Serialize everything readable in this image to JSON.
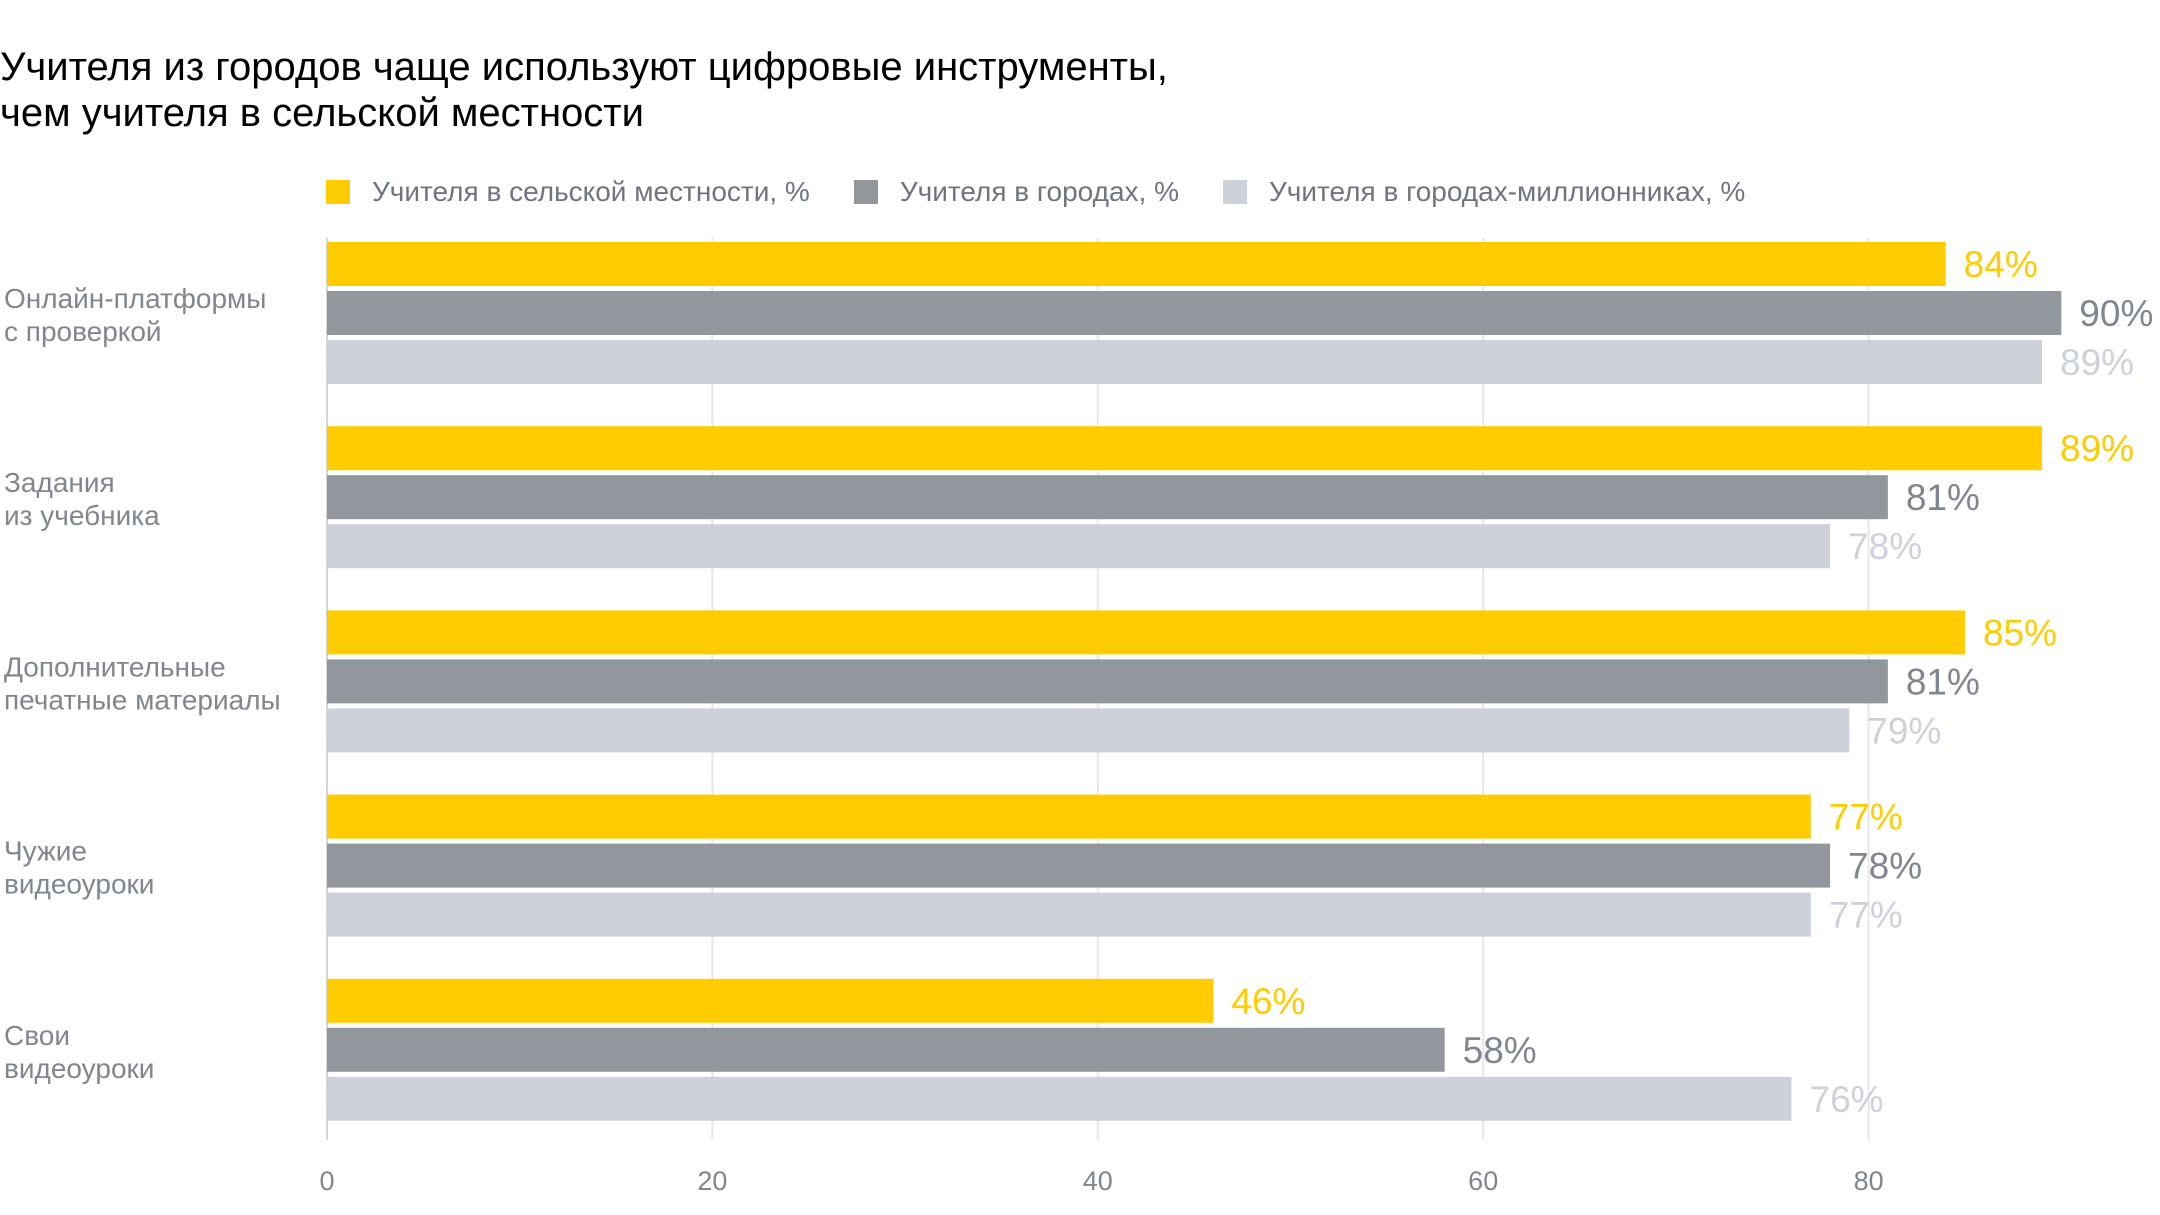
{
  "title_line1": "Учителя из городов чаще используют цифровые инструменты,",
  "title_line2": "чем учителя в сельской местности",
  "chart_data": {
    "type": "bar",
    "orientation": "horizontal",
    "categories": [
      [
        "Онлайн-платформы",
        "с проверкой"
      ],
      [
        "Задания",
        "из учебника"
      ],
      [
        "Дополнительные",
        "печатные материалы"
      ],
      [
        "Чужие",
        "видеоуроки"
      ],
      [
        "Свои",
        "видеоуроки"
      ]
    ],
    "series": [
      {
        "name": "Учителя в сельской местности, %",
        "color": "#ffcc00",
        "label_color": "#ffcc00",
        "values": [
          84,
          89,
          85,
          77,
          46
        ],
        "labels": [
          "84%",
          "89%",
          "85%",
          "77%",
          "46%"
        ]
      },
      {
        "name": "Учителя в городах, %",
        "color": "#92979e",
        "label_color": "#80868f",
        "values": [
          90,
          81,
          81,
          78,
          58
        ],
        "labels": [
          "90%",
          "81%",
          "81%",
          "78%",
          "58%"
        ]
      },
      {
        "name": "Учителя в городах-миллионниках, %",
        "color": "#cdd2da",
        "label_color": "#cdd2da",
        "values": [
          89,
          78,
          79,
          77,
          76
        ],
        "labels": [
          "89%",
          "78%",
          "79%",
          "77%",
          "76%"
        ]
      }
    ],
    "xticks": [
      0,
      20,
      40,
      60,
      80
    ],
    "xtick_labels": [
      "0",
      "20",
      "40",
      "60",
      "80"
    ],
    "xlim": [
      0,
      90
    ],
    "grid": true,
    "legend_position": "top"
  }
}
